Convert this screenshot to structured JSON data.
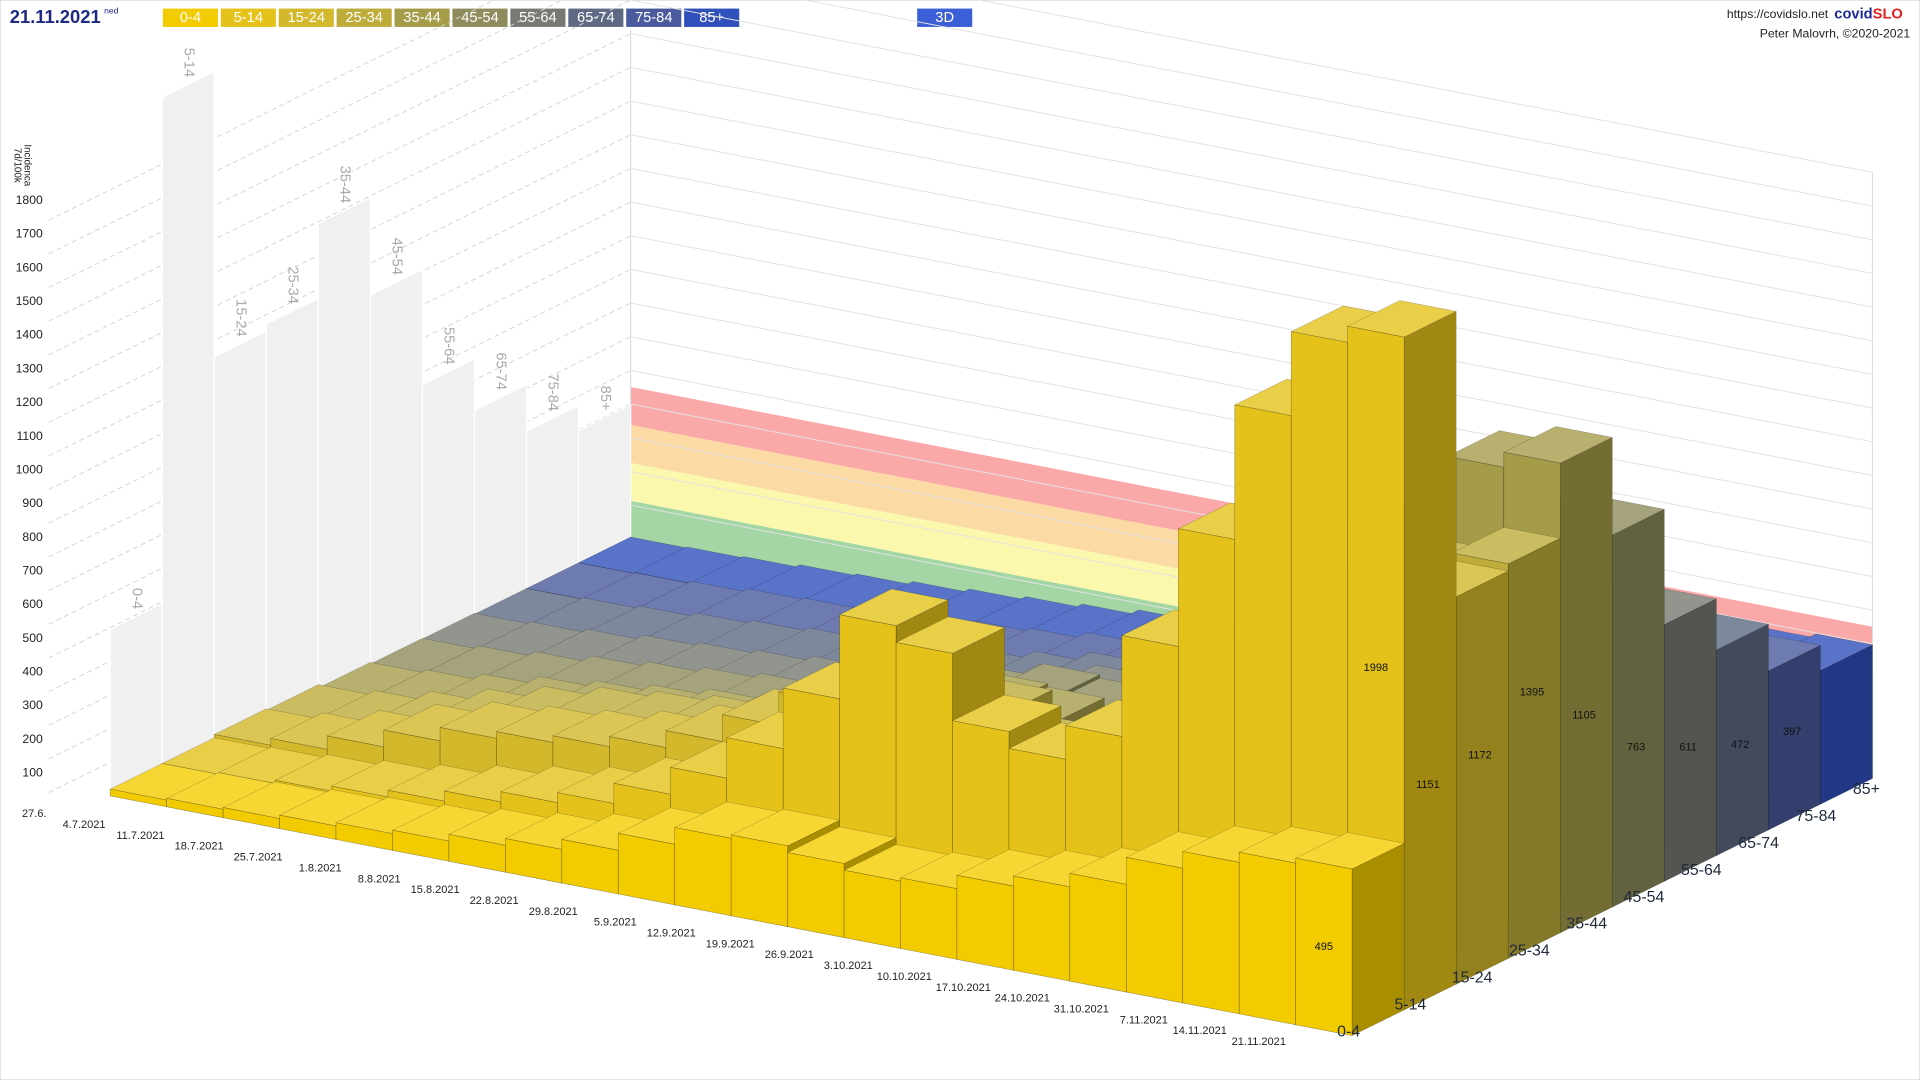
{
  "header": {
    "date": "21.11.2021",
    "weekday": "ned",
    "url": "https://covidslo.net",
    "brand": "covid",
    "brand_accent": "SLO",
    "author": "Peter Malovrh, ©2020-2021",
    "mode": "3D"
  },
  "chart_data": {
    "type": "bar3d",
    "y_label": [
      "7d/100k",
      "Incidenca"
    ],
    "categories": [
      "27.6.",
      "4.7.2021",
      "11.7.2021",
      "18.7.2021",
      "25.7.2021",
      "1.8.2021",
      "8.8.2021",
      "15.8.2021",
      "22.8.2021",
      "29.8.2021",
      "5.9.2021",
      "12.9.2021",
      "19.9.2021",
      "26.9.2021",
      "3.10.2021",
      "10.10.2021",
      "17.10.2021",
      "24.10.2021",
      "31.10.2021",
      "7.11.2021",
      "14.11.2021",
      "21.11.2021"
    ],
    "ylim": [
      0,
      1800
    ],
    "yticks": [
      100,
      200,
      300,
      400,
      500,
      600,
      700,
      800,
      900,
      1000,
      1100,
      1200,
      1300,
      1400,
      1500,
      1600,
      1700,
      1800
    ],
    "series": [
      {
        "name": "0-4",
        "color": "#f2cc00",
        "values": [
          20,
          25,
          30,
          40,
          50,
          60,
          80,
          100,
          130,
          180,
          230,
          240,
          220,
          200,
          210,
          250,
          280,
          320,
          400,
          450,
          480,
          495
        ]
      },
      {
        "name": "5-14",
        "color": "#e4c21a",
        "values": [
          20,
          25,
          35,
          50,
          70,
          100,
          130,
          160,
          220,
          300,
          420,
          600,
          850,
          800,
          600,
          550,
          650,
          950,
          1300,
          1700,
          1950,
          1998
        ]
      },
      {
        "name": "15-24",
        "color": "#d2b82a",
        "values": [
          30,
          50,
          90,
          140,
          180,
          200,
          220,
          250,
          300,
          380,
          480,
          550,
          520,
          420,
          350,
          380,
          500,
          700,
          900,
          1050,
          1120,
          1151
        ]
      },
      {
        "name": "25-34",
        "color": "#bdab3a",
        "values": [
          25,
          40,
          70,
          110,
          150,
          180,
          200,
          220,
          260,
          320,
          400,
          450,
          430,
          350,
          300,
          330,
          450,
          650,
          850,
          1000,
          1100,
          1172
        ]
      },
      {
        "name": "35-44",
        "color": "#a59c4a",
        "values": [
          15,
          25,
          45,
          70,
          90,
          110,
          130,
          150,
          180,
          230,
          300,
          340,
          330,
          280,
          260,
          300,
          420,
          650,
          900,
          1150,
          1350,
          1395
        ]
      },
      {
        "name": "45-54",
        "color": "#8e8c5c",
        "values": [
          10,
          20,
          35,
          55,
          70,
          85,
          100,
          120,
          150,
          190,
          250,
          290,
          280,
          240,
          220,
          260,
          360,
          550,
          750,
          950,
          1080,
          1105
        ]
      },
      {
        "name": "55-64",
        "color": "#777a72",
        "values": [
          8,
          15,
          25,
          40,
          50,
          60,
          75,
          90,
          110,
          140,
          180,
          210,
          200,
          180,
          170,
          200,
          280,
          420,
          560,
          680,
          740,
          763
        ]
      },
      {
        "name": "65-74",
        "color": "#5e6a84",
        "values": [
          5,
          10,
          18,
          30,
          40,
          50,
          60,
          70,
          85,
          110,
          140,
          160,
          160,
          150,
          140,
          170,
          230,
          340,
          450,
          540,
          590,
          611
        ]
      },
      {
        "name": "75-84",
        "color": "#4a5a9c",
        "values": [
          5,
          8,
          15,
          25,
          30,
          40,
          50,
          60,
          70,
          90,
          110,
          130,
          130,
          120,
          120,
          150,
          200,
          280,
          360,
          430,
          460,
          472
        ]
      },
      {
        "name": "85+",
        "color": "#3050bc",
        "values": [
          5,
          8,
          12,
          20,
          25,
          35,
          45,
          55,
          65,
          80,
          95,
          110,
          115,
          110,
          110,
          130,
          170,
          230,
          300,
          350,
          385,
          397
        ]
      }
    ]
  }
}
